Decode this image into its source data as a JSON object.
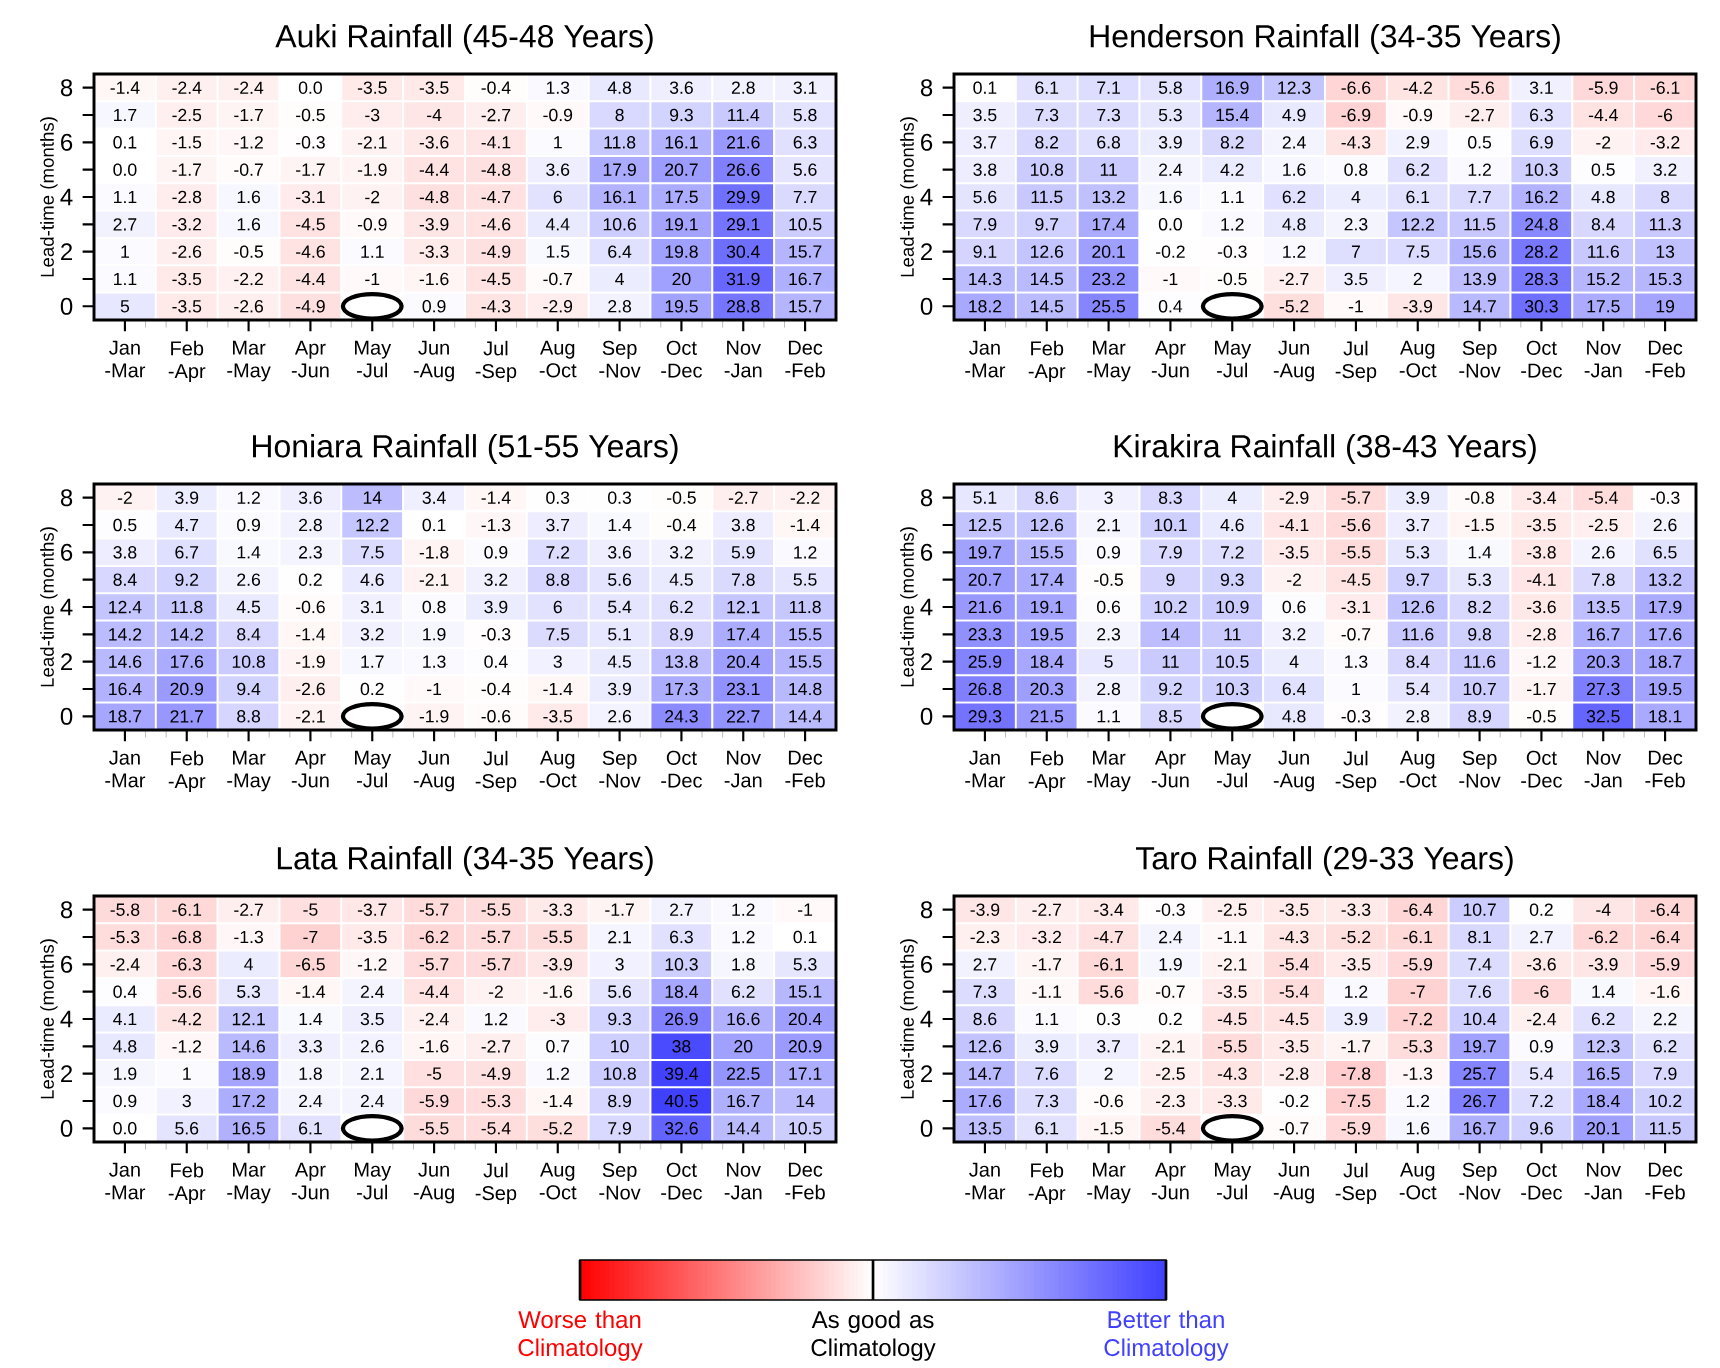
{
  "chart_data": [
    {
      "type": "heatmap",
      "title": "Auki Rainfall (45-48 Years)",
      "ylabel": "Lead-time (months)",
      "categories": [
        "Jan -Mar",
        "Feb -Apr",
        "Mar -May",
        "Apr -Jun",
        "May -Jul",
        "Jun -Aug",
        "Jul -Sep",
        "Aug -Oct",
        "Sep -Nov",
        "Oct -Dec",
        "Nov -Jan",
        "Dec -Feb"
      ],
      "y_categories": [
        "8",
        null,
        "6",
        null,
        "4",
        null,
        "2",
        null,
        "0"
      ],
      "cells": [
        [
          -1.4,
          -2.4,
          -2.4,
          0.0,
          -3.5,
          -3.5,
          -0.4,
          1.3,
          4.8,
          3.6,
          2.8,
          3.1
        ],
        [
          1.7,
          -2.5,
          -1.7,
          -0.5,
          -3,
          -4,
          -2.7,
          -0.9,
          8,
          9.3,
          11.4,
          5.8
        ],
        [
          0.1,
          -1.5,
          -1.2,
          -0.3,
          -2.1,
          -3.6,
          -4.1,
          1,
          11.8,
          16.1,
          21.6,
          6.3
        ],
        [
          0.0,
          -1.7,
          -0.7,
          -1.7,
          -1.9,
          -4.4,
          -4.8,
          3.6,
          17.9,
          20.7,
          26.6,
          5.6
        ],
        [
          1.1,
          -2.8,
          1.6,
          -3.1,
          -2,
          -4.8,
          -4.7,
          6,
          16.1,
          17.5,
          29.9,
          7.7
        ],
        [
          2.7,
          -3.2,
          1.6,
          -4.5,
          -0.9,
          -3.9,
          -4.6,
          4.4,
          10.6,
          19.1,
          29.1,
          10.5
        ],
        [
          1,
          -2.6,
          -0.5,
          -4.6,
          1.1,
          -3.3,
          -4.9,
          1.5,
          6.4,
          19.8,
          30.4,
          15.7
        ],
        [
          1.1,
          -3.5,
          -2.2,
          -4.4,
          -1,
          -1.6,
          -4.5,
          -0.7,
          4,
          20,
          31.9,
          16.7
        ],
        [
          5,
          -3.5,
          -2.6,
          -4.9,
          null,
          0.9,
          -4.3,
          -2.9,
          2.8,
          19.5,
          28.8,
          15.7
        ]
      ],
      "cell_labels": [
        [
          "-1.4",
          "-2.4",
          "-2.4",
          "0.0",
          "-3.5",
          "-3.5",
          "-0.4",
          "1.3",
          "4.8",
          "3.6",
          "2.8",
          "3.1"
        ],
        [
          "1.7",
          "-2.5",
          "-1.7",
          "-0.5",
          "-3",
          "-4",
          "-2.7",
          "-0.9",
          "8",
          "9.3",
          "11.4",
          "5.8"
        ],
        [
          "0.1",
          "-1.5",
          "-1.2",
          "-0.3",
          "-2.1",
          "-3.6",
          "-4.1",
          "1",
          "11.8",
          "16.1",
          "21.6",
          "6.3"
        ],
        [
          "0.0",
          "-1.7",
          "-0.7",
          "-1.7",
          "-1.9",
          "-4.4",
          "-4.8",
          "3.6",
          "17.9",
          "20.7",
          "26.6",
          "5.6"
        ],
        [
          "1.1",
          "-2.8",
          "1.6",
          "-3.1",
          "-2",
          "-4.8",
          "-4.7",
          "6",
          "16.1",
          "17.5",
          "29.9",
          "7.7"
        ],
        [
          "2.7",
          "-3.2",
          "1.6",
          "-4.5",
          "-0.9",
          "-3.9",
          "-4.6",
          "4.4",
          "10.6",
          "19.1",
          "29.1",
          "10.5"
        ],
        [
          "1",
          "-2.6",
          "-0.5",
          "-4.6",
          "1.1",
          "-3.3",
          "-4.9",
          "1.5",
          "6.4",
          "19.8",
          "30.4",
          "15.7"
        ],
        [
          "1.1",
          "-3.5",
          "-2.2",
          "-4.4",
          "-1",
          "-1.6",
          "-4.5",
          "-0.7",
          "4",
          "20",
          "31.9",
          "16.7"
        ],
        [
          "5",
          "-3.5",
          "-2.6",
          "-4.9",
          null,
          "0.9",
          "-4.3",
          "-2.9",
          "2.8",
          "19.5",
          "28.8",
          "15.7"
        ]
      ],
      "data_labels": true
    },
    {
      "type": "heatmap",
      "title": "Henderson Rainfall (34-35 Years)",
      "ylabel": "Lead-time (months)",
      "categories": [
        "Jan -Mar",
        "Feb -Apr",
        "Mar -May",
        "Apr -Jun",
        "May -Jul",
        "Jun -Aug",
        "Jul -Sep",
        "Aug -Oct",
        "Sep -Nov",
        "Oct -Dec",
        "Nov -Jan",
        "Dec -Feb"
      ],
      "y_categories": [
        "8",
        null,
        "6",
        null,
        "4",
        null,
        "2",
        null,
        "0"
      ],
      "cells": [
        [
          0.1,
          6.1,
          7.1,
          5.8,
          16.9,
          12.3,
          -6.6,
          -4.2,
          -5.6,
          3.1,
          -5.9,
          -6.1
        ],
        [
          3.5,
          7.3,
          7.3,
          5.3,
          15.4,
          4.9,
          -6.9,
          -0.9,
          -2.7,
          6.3,
          -4.4,
          -6
        ],
        [
          3.7,
          8.2,
          6.8,
          3.9,
          8.2,
          2.4,
          -4.3,
          2.9,
          0.5,
          6.9,
          -2,
          -3.2
        ],
        [
          3.8,
          10.8,
          11,
          2.4,
          4.2,
          1.6,
          0.8,
          6.2,
          1.2,
          10.3,
          0.5,
          3.2
        ],
        [
          5.6,
          11.5,
          13.2,
          1.6,
          1.1,
          6.2,
          4,
          6.1,
          7.7,
          16.2,
          4.8,
          8
        ],
        [
          7.9,
          9.7,
          17.4,
          0.0,
          1.2,
          4.8,
          2.3,
          12.2,
          11.5,
          24.8,
          8.4,
          11.3
        ],
        [
          9.1,
          12.6,
          20.1,
          -0.2,
          -0.3,
          1.2,
          7,
          7.5,
          15.6,
          28.2,
          11.6,
          13
        ],
        [
          14.3,
          14.5,
          23.2,
          -1,
          -0.5,
          -2.7,
          3.5,
          2,
          13.9,
          28.3,
          15.2,
          15.3
        ],
        [
          18.2,
          14.5,
          25.5,
          0.4,
          null,
          -5.2,
          -1,
          -3.9,
          14.7,
          30.3,
          17.5,
          19
        ]
      ],
      "cell_labels": [
        [
          "0.1",
          "6.1",
          "7.1",
          "5.8",
          "16.9",
          "12.3",
          "-6.6",
          "-4.2",
          "-5.6",
          "3.1",
          "-5.9",
          "-6.1"
        ],
        [
          "3.5",
          "7.3",
          "7.3",
          "5.3",
          "15.4",
          "4.9",
          "-6.9",
          "-0.9",
          "-2.7",
          "6.3",
          "-4.4",
          "-6"
        ],
        [
          "3.7",
          "8.2",
          "6.8",
          "3.9",
          "8.2",
          "2.4",
          "-4.3",
          "2.9",
          "0.5",
          "6.9",
          "-2",
          "-3.2"
        ],
        [
          "3.8",
          "10.8",
          "11",
          "2.4",
          "4.2",
          "1.6",
          "0.8",
          "6.2",
          "1.2",
          "10.3",
          "0.5",
          "3.2"
        ],
        [
          "5.6",
          "11.5",
          "13.2",
          "1.6",
          "1.1",
          "6.2",
          "4",
          "6.1",
          "7.7",
          "16.2",
          "4.8",
          "8"
        ],
        [
          "7.9",
          "9.7",
          "17.4",
          "0.0",
          "1.2",
          "4.8",
          "2.3",
          "12.2",
          "11.5",
          "24.8",
          "8.4",
          "11.3"
        ],
        [
          "9.1",
          "12.6",
          "20.1",
          "-0.2",
          "-0.3",
          "1.2",
          "7",
          "7.5",
          "15.6",
          "28.2",
          "11.6",
          "13"
        ],
        [
          "14.3",
          "14.5",
          "23.2",
          "-1",
          "-0.5",
          "-2.7",
          "3.5",
          "2",
          "13.9",
          "28.3",
          "15.2",
          "15.3"
        ],
        [
          "18.2",
          "14.5",
          "25.5",
          "0.4",
          null,
          "-5.2",
          "-1",
          "-3.9",
          "14.7",
          "30.3",
          "17.5",
          "19"
        ]
      ],
      "data_labels": true
    },
    {
      "type": "heatmap",
      "title": "Honiara Rainfall (51-55 Years)",
      "ylabel": "Lead-time (months)",
      "categories": [
        "Jan -Mar",
        "Feb -Apr",
        "Mar -May",
        "Apr -Jun",
        "May -Jul",
        "Jun -Aug",
        "Jul -Sep",
        "Aug -Oct",
        "Sep -Nov",
        "Oct -Dec",
        "Nov -Jan",
        "Dec -Feb"
      ],
      "y_categories": [
        "8",
        null,
        "6",
        null,
        "4",
        null,
        "2",
        null,
        "0"
      ],
      "cells": [
        [
          -2,
          3.9,
          1.2,
          3.6,
          14,
          3.4,
          -1.4,
          0.3,
          0.3,
          -0.5,
          -2.7,
          -2.2
        ],
        [
          0.5,
          4.7,
          0.9,
          2.8,
          12.2,
          0.1,
          -1.3,
          3.7,
          1.4,
          -0.4,
          3.8,
          -1.4
        ],
        [
          3.8,
          6.7,
          1.4,
          2.3,
          7.5,
          -1.8,
          0.9,
          7.2,
          3.6,
          3.2,
          5.9,
          1.2
        ],
        [
          8.4,
          9.2,
          2.6,
          0.2,
          4.6,
          -2.1,
          3.2,
          8.8,
          5.6,
          4.5,
          7.8,
          5.5
        ],
        [
          12.4,
          11.8,
          4.5,
          -0.6,
          3.1,
          0.8,
          3.9,
          6,
          5.4,
          6.2,
          12.1,
          11.8
        ],
        [
          14.2,
          14.2,
          8.4,
          -1.4,
          3.2,
          1.9,
          -0.3,
          7.5,
          5.1,
          8.9,
          17.4,
          15.5
        ],
        [
          14.6,
          17.6,
          10.8,
          -1.9,
          1.7,
          1.3,
          0.4,
          3,
          4.5,
          13.8,
          20.4,
          15.5
        ],
        [
          16.4,
          20.9,
          9.4,
          -2.6,
          0.2,
          -1,
          -0.4,
          -1.4,
          3.9,
          17.3,
          23.1,
          14.8
        ],
        [
          18.7,
          21.7,
          8.8,
          -2.1,
          null,
          -1.9,
          -0.6,
          -3.5,
          2.6,
          24.3,
          22.7,
          14.4
        ]
      ],
      "data_labels": true
    },
    {
      "type": "heatmap",
      "title": "Kirakira Rainfall (38-43 Years)",
      "ylabel": "Lead-time (months)",
      "categories": [
        "Jan -Mar",
        "Feb -Apr",
        "Mar -May",
        "Apr -Jun",
        "May -Jul",
        "Jun -Aug",
        "Jul -Sep",
        "Aug -Oct",
        "Sep -Nov",
        "Oct -Dec",
        "Nov -Jan",
        "Dec -Feb"
      ],
      "y_categories": [
        "8",
        null,
        "6",
        null,
        "4",
        null,
        "2",
        null,
        "0"
      ],
      "cells": [
        [
          5.1,
          8.6,
          3,
          8.3,
          4,
          -2.9,
          -5.7,
          3.9,
          -0.8,
          -3.4,
          -5.4,
          -0.3
        ],
        [
          12.5,
          12.6,
          2.1,
          10.1,
          4.6,
          -4.1,
          -5.6,
          3.7,
          -1.5,
          -3.5,
          -2.5,
          2.6
        ],
        [
          19.7,
          15.5,
          0.9,
          7.9,
          7.2,
          -3.5,
          -5.5,
          5.3,
          1.4,
          -3.8,
          2.6,
          6.5
        ],
        [
          20.7,
          17.4,
          -0.5,
          9,
          9.3,
          -2,
          -4.5,
          9.7,
          5.3,
          -4.1,
          7.8,
          13.2
        ],
        [
          21.6,
          19.1,
          0.6,
          10.2,
          10.9,
          0.6,
          -3.1,
          12.6,
          8.2,
          -3.6,
          13.5,
          17.9
        ],
        [
          23.3,
          19.5,
          2.3,
          14,
          11,
          3.2,
          -0.7,
          11.6,
          9.8,
          -2.8,
          16.7,
          17.6
        ],
        [
          25.9,
          18.4,
          5,
          11,
          10.5,
          4,
          1.3,
          8.4,
          11.6,
          -1.2,
          20.3,
          18.7
        ],
        [
          26.8,
          20.3,
          2.8,
          9.2,
          10.3,
          6.4,
          1,
          5.4,
          10.7,
          -1.7,
          27.3,
          19.5
        ],
        [
          29.3,
          21.5,
          1.1,
          8.5,
          null,
          4.8,
          -0.3,
          2.8,
          8.9,
          -0.5,
          32.5,
          18.1
        ]
      ],
      "data_labels": true
    },
    {
      "type": "heatmap",
      "title": "Lata Rainfall (34-35 Years)",
      "ylabel": "Lead-time (months)",
      "categories": [
        "Jan -Mar",
        "Feb -Apr",
        "Mar -May",
        "Apr -Jun",
        "May -Jul",
        "Jun -Aug",
        "Jul -Sep",
        "Aug -Oct",
        "Sep -Nov",
        "Oct -Dec",
        "Nov -Jan",
        "Dec -Feb"
      ],
      "y_categories": [
        "8",
        null,
        "6",
        null,
        "4",
        null,
        "2",
        null,
        "0"
      ],
      "cells": [
        [
          -5.8,
          -6.1,
          -2.7,
          -5,
          -3.7,
          -5.7,
          -5.5,
          -3.3,
          -1.7,
          2.7,
          1.2,
          -1
        ],
        [
          -5.3,
          -6.8,
          -1.3,
          -7,
          -3.5,
          -6.2,
          -5.7,
          -5.5,
          2.1,
          6.3,
          1.2,
          0.1
        ],
        [
          -2.4,
          -6.3,
          4,
          -6.5,
          -1.2,
          -5.7,
          -5.7,
          -3.9,
          3,
          10.3,
          1.8,
          5.3
        ],
        [
          0.4,
          -5.6,
          5.3,
          -1.4,
          2.4,
          -4.4,
          -2,
          -1.6,
          5.6,
          18.4,
          6.2,
          15.1
        ],
        [
          4.1,
          -4.2,
          12.1,
          1.4,
          3.5,
          -2.4,
          1.2,
          -3,
          9.3,
          26.9,
          16.6,
          20.4
        ],
        [
          4.8,
          -1.2,
          14.6,
          3.3,
          2.6,
          -1.6,
          -2.7,
          0.7,
          10,
          38,
          20,
          20.9
        ],
        [
          1.9,
          1,
          18.9,
          1.8,
          2.1,
          -5,
          -4.9,
          1.2,
          10.8,
          39.4,
          22.5,
          17.1
        ],
        [
          0.9,
          3,
          17.2,
          2.4,
          2.4,
          -5.9,
          -5.3,
          -1.4,
          8.9,
          40.5,
          16.7,
          14
        ],
        [
          0.0,
          5.6,
          16.5,
          6.1,
          null,
          -5.5,
          -5.4,
          -5.2,
          7.9,
          32.6,
          14.4,
          10.5
        ]
      ],
      "cell_labels": [
        [
          "-5.8",
          "-6.1",
          "-2.7",
          "-5",
          "-3.7",
          "-5.7",
          "-5.5",
          "-3.3",
          "-1.7",
          "2.7",
          "1.2",
          "-1"
        ],
        [
          "-5.3",
          "-6.8",
          "-1.3",
          "-7",
          "-3.5",
          "-6.2",
          "-5.7",
          "-5.5",
          "2.1",
          "6.3",
          "1.2",
          "0.1"
        ],
        [
          "-2.4",
          "-6.3",
          "4",
          "-6.5",
          "-1.2",
          "-5.7",
          "-5.7",
          "-3.9",
          "3",
          "10.3",
          "1.8",
          "5.3"
        ],
        [
          "0.4",
          "-5.6",
          "5.3",
          "-1.4",
          "2.4",
          "-4.4",
          "-2",
          "-1.6",
          "5.6",
          "18.4",
          "6.2",
          "15.1"
        ],
        [
          "4.1",
          "-4.2",
          "12.1",
          "1.4",
          "3.5",
          "-2.4",
          "1.2",
          "-3",
          "9.3",
          "26.9",
          "16.6",
          "20.4"
        ],
        [
          "4.8",
          "-1.2",
          "14.6",
          "3.3",
          "2.6",
          "-1.6",
          "-2.7",
          "0.7",
          "10",
          "38",
          "20",
          "20.9"
        ],
        [
          "1.9",
          "1",
          "18.9",
          "1.8",
          "2.1",
          "-5",
          "-4.9",
          "1.2",
          "10.8",
          "39.4",
          "22.5",
          "17.1"
        ],
        [
          "0.9",
          "3",
          "17.2",
          "2.4",
          "2.4",
          "-5.9",
          "-5.3",
          "-1.4",
          "8.9",
          "40.5",
          "16.7",
          "14"
        ],
        [
          "0.0",
          "5.6",
          "16.5",
          "6.1",
          null,
          "-5.5",
          "-5.4",
          "-5.2",
          "7.9",
          "32.6",
          "14.4",
          "10.5"
        ]
      ],
      "data_labels": true
    },
    {
      "type": "heatmap",
      "title": "Taro Rainfall (29-33 Years)",
      "ylabel": "Lead-time (months)",
      "categories": [
        "Jan -Mar",
        "Feb -Apr",
        "Mar -May",
        "Apr -Jun",
        "May -Jul",
        "Jun -Aug",
        "Jul -Sep",
        "Aug -Oct",
        "Sep -Nov",
        "Oct -Dec",
        "Nov -Jan",
        "Dec -Feb"
      ],
      "y_categories": [
        "8",
        null,
        "6",
        null,
        "4",
        null,
        "2",
        null,
        "0"
      ],
      "cells": [
        [
          -3.9,
          -2.7,
          -3.4,
          -0.3,
          -2.5,
          -3.5,
          -3.3,
          -6.4,
          10.7,
          0.2,
          -4,
          -6.4
        ],
        [
          -2.3,
          -3.2,
          -4.7,
          2.4,
          -1.1,
          -4.3,
          -5.2,
          -6.1,
          8.1,
          2.7,
          -6.2,
          -6.4
        ],
        [
          2.7,
          -1.7,
          -6.1,
          1.9,
          -2.1,
          -5.4,
          -3.5,
          -5.9,
          7.4,
          -3.6,
          -3.9,
          -5.9
        ],
        [
          7.3,
          -1.1,
          -5.6,
          -0.7,
          -3.5,
          -5.4,
          1.2,
          -7,
          7.6,
          -6,
          1.4,
          -1.6
        ],
        [
          8.6,
          1.1,
          0.3,
          0.2,
          -4.5,
          -4.5,
          3.9,
          -7.2,
          10.4,
          -2.4,
          6.2,
          2.2
        ],
        [
          12.6,
          3.9,
          3.7,
          -2.1,
          -5.5,
          -3.5,
          -1.7,
          -5.3,
          19.7,
          0.9,
          12.3,
          6.2
        ],
        [
          14.7,
          7.6,
          2,
          -2.5,
          -4.3,
          -2.8,
          -7.8,
          -1.3,
          25.7,
          5.4,
          16.5,
          7.9
        ],
        [
          17.6,
          7.3,
          -0.6,
          -2.3,
          -3.3,
          -0.2,
          -7.5,
          1.2,
          26.7,
          7.2,
          18.4,
          10.2
        ],
        [
          13.5,
          6.1,
          -1.5,
          -5.4,
          null,
          -0.7,
          -5.9,
          1.6,
          16.7,
          9.6,
          20.1,
          11.5
        ]
      ],
      "data_labels": true,
      "clim": [
        -40,
        40
      ],
      "cticks": [
        {
          "value": -40,
          "label": "Worse than Climatology"
        },
        {
          "value": 0,
          "label": "As good as Climatology"
        },
        {
          "value": 40,
          "label": "Better than Climatology"
        }
      ]
    }
  ]
}
